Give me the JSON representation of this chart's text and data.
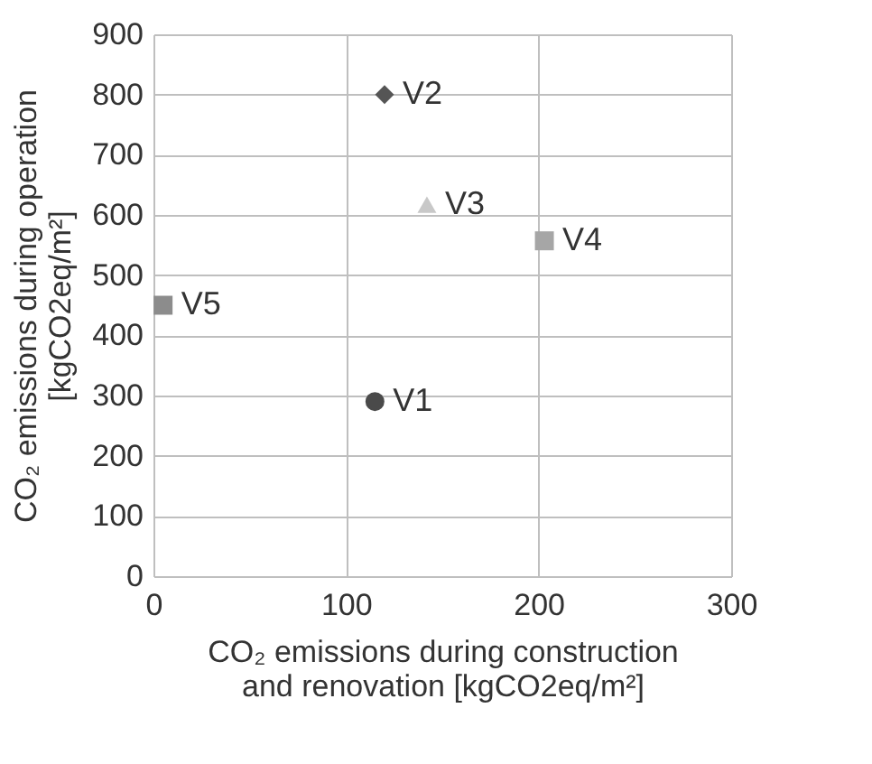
{
  "chart_data": {
    "type": "scatter",
    "xlabel": "CO₂ emissions during construction\nand renovation [kgCO2eq/m²]",
    "ylabel": "CO₂ emissions during operation\n[kgCO2eq/m²]",
    "xlim": [
      0,
      300
    ],
    "xticks": [
      0,
      100,
      200,
      300
    ],
    "ylim": [
      0,
      900
    ],
    "yticks": [
      0,
      100,
      200,
      300,
      400,
      500,
      600,
      700,
      800,
      900
    ],
    "grid": true,
    "series": [
      {
        "name": "V1",
        "color": "#4a4a4a",
        "marker": "circle",
        "x": [
          115
        ],
        "values": [
          290
        ]
      },
      {
        "name": "V2",
        "color": "#555555",
        "marker": "diamond",
        "x": [
          120
        ],
        "values": [
          800
        ]
      },
      {
        "name": "V3",
        "color": "#c8c8c8",
        "marker": "triangle",
        "x": [
          142
        ],
        "values": [
          617
        ]
      },
      {
        "name": "V4",
        "color": "#a6a6a6",
        "marker": "square",
        "x": [
          203
        ],
        "values": [
          557
        ]
      },
      {
        "name": "V5",
        "color": "#8c8c8c",
        "marker": "square",
        "x": [
          5
        ],
        "values": [
          450
        ]
      }
    ]
  }
}
